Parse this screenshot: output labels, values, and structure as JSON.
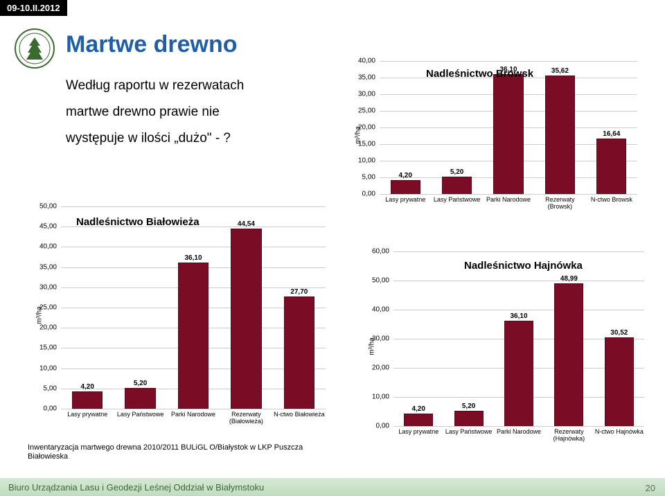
{
  "date_tab": "09-10.II.2012",
  "title": "Martwe drewno",
  "body_text": {
    "line1": "Według raportu w rezerwatach",
    "line2": "martwe drewno prawie nie",
    "line3": "występuje w ilości „dużo\" - ?"
  },
  "caption": "Inwentaryzacja martwego drewna 2010/2011 BULiGL O/Białystok  w LKP Puszcza Białowieska",
  "footer": "Biuro Urządzania Lasu i Geodezji Leśnej Oddział w Białymstoku",
  "page": "20",
  "logo": {
    "stroke": "#3a6b2e",
    "fill_bg": "#ffffff",
    "fill_tree": "#3a6b2e"
  },
  "chart_browsk": {
    "title": "Nadleśnictwo Browsk",
    "ylabel": "m³/ha",
    "ymin": 0,
    "ymax": 40,
    "ytick": 5,
    "decimals": 2,
    "grid": "#cccccc",
    "bar_color": "#7a0d25",
    "bar_border": "#5a0818",
    "label_fontsize": 10,
    "categories": [
      "Lasy prywatne",
      "Lasy Państwowe",
      "Parki Narodowe",
      "Rezerwaty (Browsk)",
      "N-ctwo Browsk"
    ],
    "values": [
      4.2,
      5.2,
      36.1,
      35.62,
      16.64
    ]
  },
  "chart_bialowieza": {
    "title": "Nadleśnictwo Białowieża",
    "ylabel": "m³/ha",
    "ymin": 0,
    "ymax": 50,
    "ytick": 5,
    "decimals": 2,
    "grid": "#cccccc",
    "bar_color": "#7a0d25",
    "bar_border": "#5a0818",
    "label_fontsize": 10,
    "categories": [
      "Lasy prywatne",
      "Lasy Państwowe",
      "Parki Narodowe",
      "Rezerwaty (Białowieża)",
      "N-ctwo Białowieża"
    ],
    "values": [
      4.2,
      5.2,
      36.1,
      44.54,
      27.7
    ]
  },
  "chart_hajnowka": {
    "title": "Nadleśnictwo Hajnówka",
    "ylabel": "m³/ha",
    "ymin": 0,
    "ymax": 60,
    "ytick": 10,
    "decimals": 2,
    "grid": "#cccccc",
    "bar_color": "#7a0d25",
    "bar_border": "#5a0818",
    "label_fontsize": 10,
    "categories": [
      "Lasy prywatne",
      "Lasy Państwowe",
      "Parki Narodowe",
      "Rezerwaty (Hajnówka)",
      "N-ctwo Hajnówka"
    ],
    "values": [
      4.2,
      5.2,
      36.1,
      48.99,
      30.52
    ]
  }
}
